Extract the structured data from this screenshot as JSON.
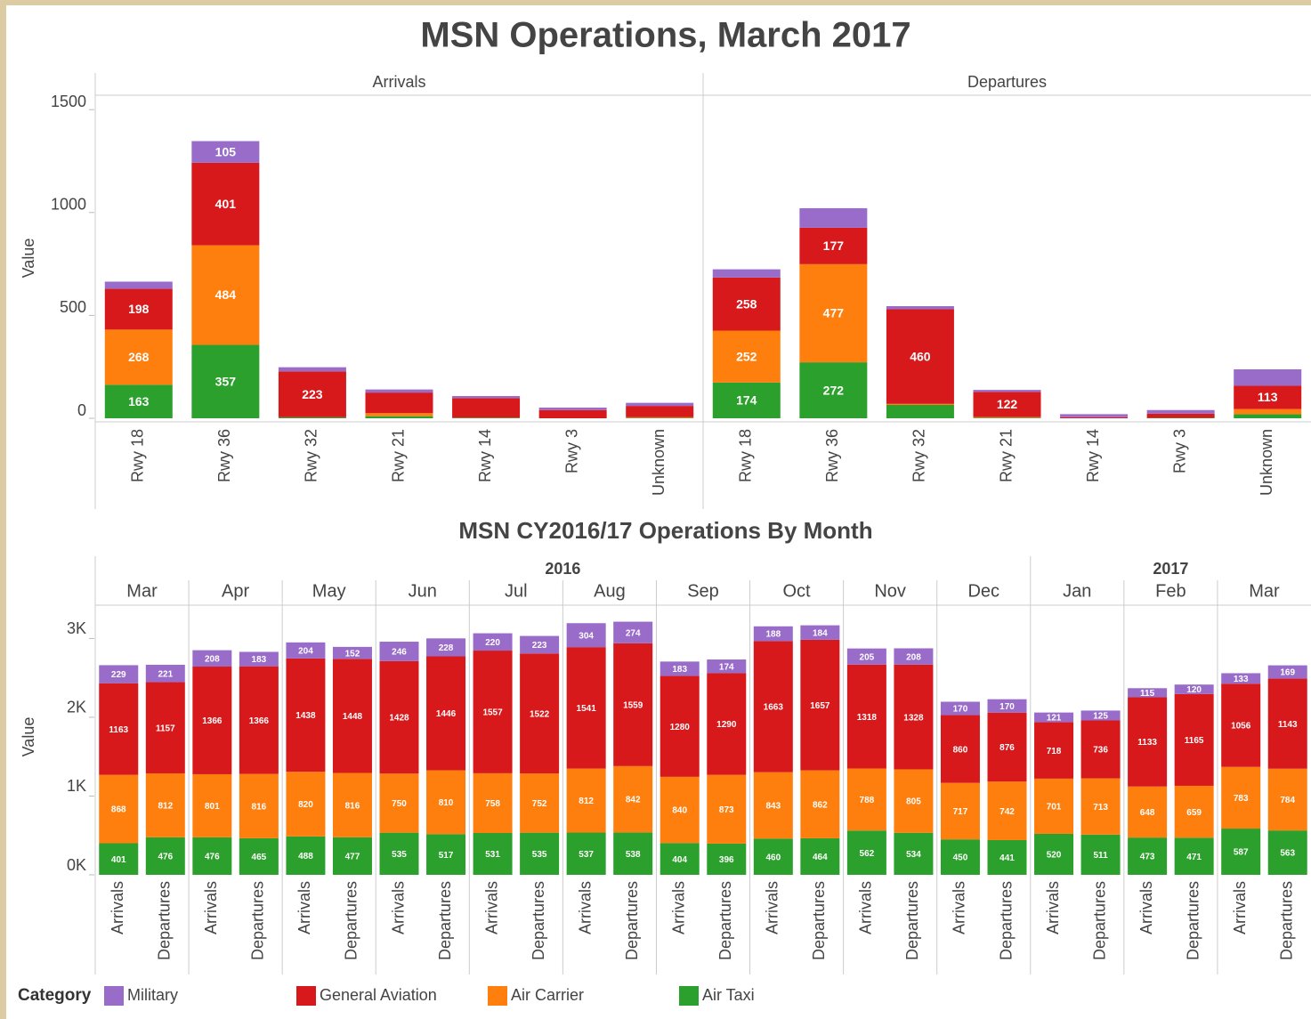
{
  "title": "MSN Operations, March 2017",
  "legend": {
    "title": "Category"
  },
  "chart_data": [
    {
      "type": "bar",
      "stacked": true,
      "ylabel": "Value",
      "ylim": [
        0,
        1570
      ],
      "yticks": [
        0,
        500,
        1000,
        1500
      ],
      "panels": [
        "Arrivals",
        "Departures"
      ],
      "categories": [
        "Rwy 18",
        "Rwy 36",
        "Rwy 32",
        "Rwy 21",
        "Rwy 14",
        "Rwy 3",
        "Unknown"
      ],
      "series": [
        {
          "color": "#9a6cc9",
          "values": [
            [
              35,
              105,
              20,
              15,
              10,
              12,
              15
            ],
            [
              40,
              95,
              15,
              10,
              15,
              18,
              80
            ]
          ]
        },
        {
          "color": "#d7191c",
          "values": [
            [
              198,
              401,
              223,
              100,
              95,
              40,
              55
            ],
            [
              258,
              177,
              460,
              122,
              5,
              20,
              113
            ]
          ]
        },
        {
          "color": "#ff7f0e",
          "values": [
            [
              268,
              484,
              0,
              15,
              0,
              0,
              3
            ],
            [
              252,
              477,
              5,
              3,
              0,
              0,
              25
            ]
          ]
        },
        {
          "color": "#2ca02c",
          "values": [
            [
              163,
              357,
              5,
              10,
              3,
              0,
              2
            ],
            [
              174,
              272,
              65,
              3,
              0,
              2,
              20
            ]
          ]
        }
      ]
    },
    {
      "type": "bar",
      "stacked": true,
      "title": "MSN CY2016/17 Operations By Month",
      "ylabel": "Value",
      "ylim": [
        0,
        3400
      ],
      "yticks": [
        {
          "value": 0,
          "label": "0K"
        },
        {
          "value": 1000,
          "label": "1K"
        },
        {
          "value": 2000,
          "label": "2K"
        },
        {
          "value": 3000,
          "label": "3K"
        }
      ],
      "groups": [
        {
          "year": "2016",
          "months": [
            "Mar",
            "Apr",
            "May",
            "Jun",
            "Jul",
            "Aug",
            "Sep",
            "Oct",
            "Nov",
            "Dec"
          ]
        },
        {
          "year": "2017",
          "months": [
            "Jan",
            "Feb",
            "Mar"
          ]
        }
      ],
      "categories": [
        "Arrivals",
        "Departures",
        "Arrivals",
        "Departures",
        "Arrivals",
        "Departures",
        "Arrivals",
        "Departures",
        "Arrivals",
        "Departures",
        "Arrivals",
        "Departures",
        "Arrivals",
        "Departures",
        "Arrivals",
        "Departures",
        "Arrivals",
        "Departures",
        "Arrivals",
        "Departures",
        "Arrivals",
        "Departures",
        "Arrivals",
        "Departures",
        "Arrivals",
        "Departures"
      ],
      "series": [
        {
          "name": "Military",
          "color": "#9a6cc9",
          "values": [
            229,
            221,
            208,
            183,
            204,
            152,
            246,
            228,
            220,
            223,
            304,
            274,
            183,
            174,
            188,
            184,
            205,
            208,
            170,
            170,
            121,
            125,
            115,
            120,
            133,
            169
          ]
        },
        {
          "name": "General Aviation",
          "color": "#d7191c",
          "values": [
            1163,
            1157,
            1366,
            1366,
            1438,
            1448,
            1428,
            1446,
            1557,
            1522,
            1541,
            1559,
            1280,
            1290,
            1663,
            1657,
            1318,
            1328,
            860,
            876,
            718,
            736,
            1133,
            1165,
            1056,
            1143
          ]
        },
        {
          "name": "Air Carrier",
          "color": "#ff7f0e",
          "values": [
            868,
            812,
            801,
            816,
            820,
            816,
            750,
            810,
            758,
            752,
            812,
            842,
            840,
            873,
            843,
            862,
            788,
            805,
            717,
            742,
            701,
            713,
            648,
            659,
            783,
            784
          ]
        },
        {
          "name": "Air Taxi",
          "color": "#2ca02c",
          "values": [
            401,
            476,
            476,
            465,
            488,
            477,
            535,
            517,
            531,
            535,
            537,
            538,
            404,
            396,
            460,
            464,
            562,
            534,
            450,
            441,
            520,
            511,
            473,
            471,
            587,
            563
          ]
        }
      ]
    }
  ]
}
